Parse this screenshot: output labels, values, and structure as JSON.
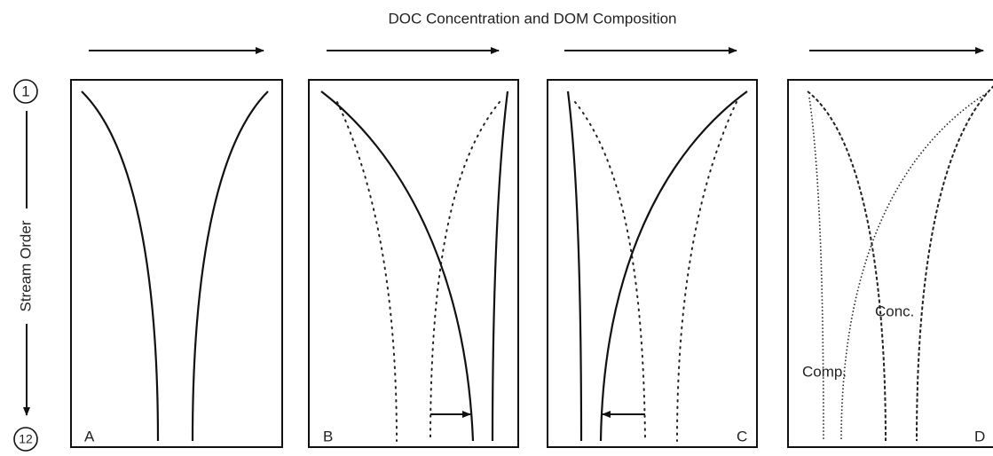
{
  "header": {
    "title": "DOC Concentration and DOM Composition"
  },
  "axis": {
    "label": "Stream Order",
    "top": "1",
    "bottom": "12"
  },
  "panels": [
    {
      "label": "A"
    },
    {
      "label": "B"
    },
    {
      "label": "C"
    },
    {
      "label": "D",
      "annotations": [
        "Conc.",
        "Comp."
      ]
    }
  ]
}
